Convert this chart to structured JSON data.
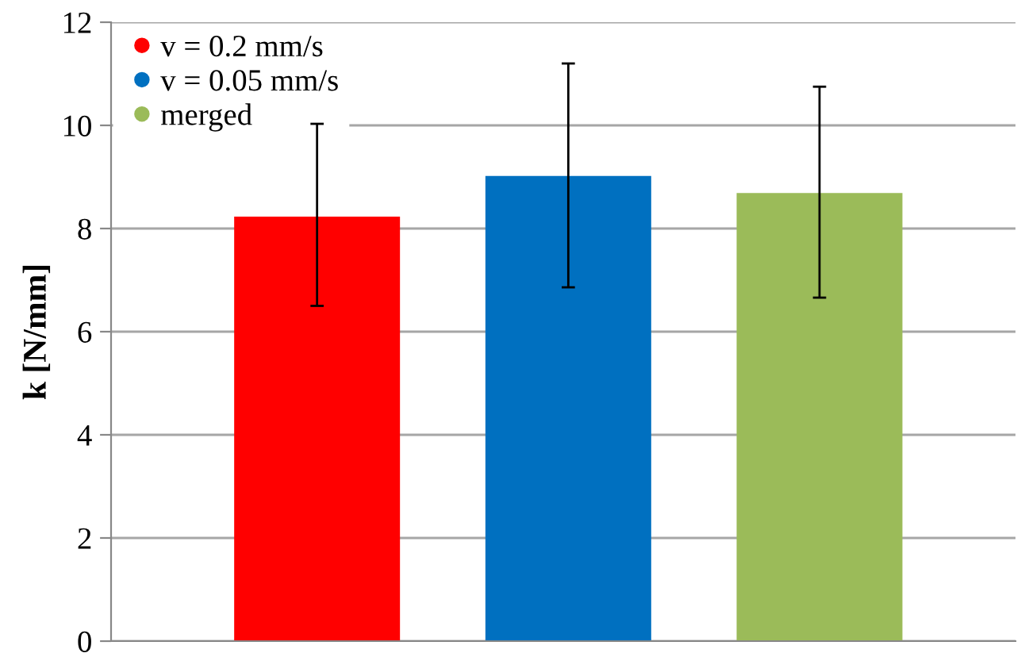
{
  "chart_data": {
    "type": "bar",
    "ylabel": "k [N/mm]",
    "categories": [
      null,
      null,
      null
    ],
    "series": [
      {
        "name": "v = 0.2 mm/s",
        "color": "#ff0000",
        "values": [
          8.23,
          null,
          null
        ],
        "errors": [
          [
            6.5,
            10.03
          ],
          null,
          null
        ]
      },
      {
        "name": "v = 0.05 mm/s",
        "color": "#0070c0",
        "values": [
          null,
          9.02,
          null
        ],
        "errors": [
          null,
          [
            6.86,
            11.2
          ],
          null
        ]
      },
      {
        "name": "merged",
        "color": "#9bbb59",
        "values": [
          null,
          null,
          8.69
        ],
        "errors": [
          null,
          null,
          [
            6.66,
            10.75
          ]
        ]
      }
    ],
    "ylim": [
      0,
      12
    ],
    "yticks": [
      0,
      2,
      4,
      6,
      8,
      10,
      12
    ],
    "grid": "y",
    "legend": "top left",
    "tick_labels": "y"
  }
}
